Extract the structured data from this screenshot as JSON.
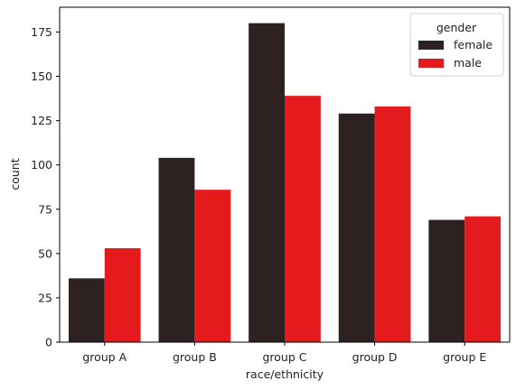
{
  "chart_data": {
    "type": "bar",
    "title": "",
    "xlabel": "race/ethnicity",
    "ylabel": "count",
    "categories": [
      "group A",
      "group B",
      "group C",
      "group D",
      "group E"
    ],
    "series": [
      {
        "name": "female",
        "color": "#2e2121",
        "values": [
          36,
          104,
          180,
          129,
          69
        ]
      },
      {
        "name": "male",
        "color": "#e41a1c",
        "values": [
          53,
          86,
          139,
          133,
          71
        ]
      }
    ],
    "ylim": [
      0,
      189
    ],
    "yticks": [
      0,
      25,
      50,
      75,
      100,
      125,
      150,
      175
    ],
    "grid": false,
    "legend": {
      "title": "gender",
      "placement": "top-right"
    }
  }
}
